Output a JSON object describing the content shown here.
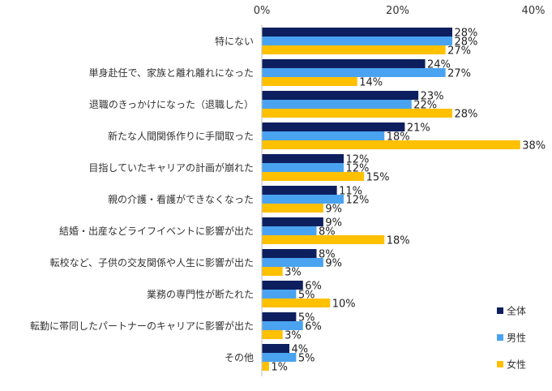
{
  "chart_data": {
    "type": "bar",
    "orientation": "horizontal",
    "title": "",
    "xlabel": "",
    "ylabel": "",
    "xlim": [
      0,
      40
    ],
    "x_ticks": [
      "0%",
      "20%",
      "40%"
    ],
    "grid": false,
    "legend_position": "bottom-right",
    "categories": [
      "特にない",
      "単身赴任で、家族と離れ離れになった",
      "退職のきっかけになった（退職した）",
      "新たな人間関係作りに手間取った",
      "目指していたキャリアの計画が崩れた",
      "親の介護・看護ができなくなった",
      "結婚・出産などライフイベントに影響が出た",
      "転校など、子供の交友関係や人生に影響が出た",
      "業務の専門性が断たれた",
      "転勤に帯同したパートナーのキャリアに影響が出た",
      "その他"
    ],
    "series": [
      {
        "name": "全体",
        "color": "#0d1f5e",
        "values": [
          28,
          24,
          23,
          21,
          12,
          11,
          9,
          8,
          6,
          5,
          4
        ]
      },
      {
        "name": "男性",
        "color": "#4aa3f0",
        "values": [
          28,
          27,
          22,
          18,
          12,
          12,
          8,
          9,
          5,
          6,
          5
        ]
      },
      {
        "name": "女性",
        "color": "#ffc000",
        "values": [
          27,
          14,
          28,
          38,
          15,
          9,
          18,
          3,
          10,
          3,
          1
        ]
      }
    ],
    "value_suffix": "%"
  }
}
